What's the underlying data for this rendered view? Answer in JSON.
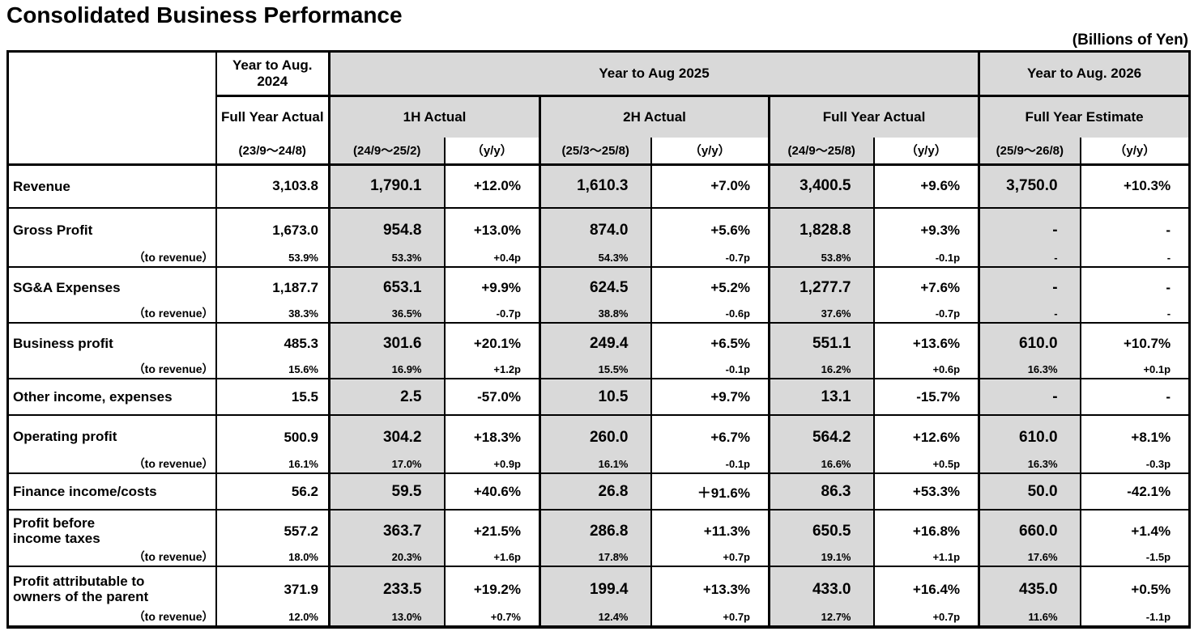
{
  "title": "Consolidated Business Performance",
  "unit_note": "(Billions of Yen)",
  "header": {
    "group_2024": "Year to Aug. 2024",
    "group_2025": "Year to Aug 2025",
    "group_2026": "Year to Aug. 2026",
    "sub_2024": "Full Year Actual",
    "sub_1h": "1H Actual",
    "sub_2h": "2H Actual",
    "sub_fy": "Full Year Actual",
    "sub_est": "Full Year Estimate",
    "periods": [
      "(23/9～24/8)",
      "(24/9～25/2)",
      "（y/y）",
      "(25/3～25/8)",
      "（y/y）",
      "(24/9～25/8)",
      "（y/y）",
      "(25/9～26/8)",
      "（y/y）"
    ]
  },
  "rows": [
    {
      "label": "Revenue",
      "values": [
        "3,103.8",
        "1,790.1",
        "+12.0%",
        "1,610.3",
        "+7.0%",
        "3,400.5",
        "+9.6%",
        "3,750.0",
        "+10.3%"
      ]
    },
    {
      "label": "Gross Profit",
      "sublabel": "（to revenue）",
      "values": [
        "1,673.0",
        "954.8",
        "+13.0%",
        "874.0",
        "+5.6%",
        "1,828.8",
        "+9.3%",
        "-",
        "-"
      ],
      "subvalues": [
        "53.9%",
        "53.3%",
        "+0.4p",
        "54.3%",
        "-0.7p",
        "53.8%",
        "-0.1p",
        "-",
        "-"
      ]
    },
    {
      "label": "SG&A Expenses",
      "sublabel": "（to revenue）",
      "values": [
        "1,187.7",
        "653.1",
        "+9.9%",
        "624.5",
        "+5.2%",
        "1,277.7",
        "+7.6%",
        "-",
        "-"
      ],
      "subvalues": [
        "38.3%",
        "36.5%",
        "-0.7p",
        "38.8%",
        "-0.6p",
        "37.6%",
        "-0.7p",
        "-",
        "-"
      ]
    },
    {
      "label": "Business profit",
      "sublabel": "（to revenue）",
      "values": [
        "485.3",
        "301.6",
        "+20.1%",
        "249.4",
        "+6.5%",
        "551.1",
        "+13.6%",
        "610.0",
        "+10.7%"
      ],
      "subvalues": [
        "15.6%",
        "16.9%",
        "+1.2p",
        "15.5%",
        "-0.1p",
        "16.2%",
        "+0.6p",
        "16.3%",
        "+0.1p"
      ]
    },
    {
      "label": "Other income, expenses",
      "values": [
        "15.5",
        "2.5",
        "-57.0%",
        "10.5",
        "+9.7%",
        "13.1",
        "-15.7%",
        "-",
        "-"
      ]
    },
    {
      "label": "Operating profit",
      "sublabel": "（to revenue）",
      "values": [
        "500.9",
        "304.2",
        "+18.3%",
        "260.0",
        "+6.7%",
        "564.2",
        "+12.6%",
        "610.0",
        "+8.1%"
      ],
      "subvalues": [
        "16.1%",
        "17.0%",
        "+0.9p",
        "16.1%",
        "-0.1p",
        "16.6%",
        "+0.5p",
        "16.3%",
        "-0.3p"
      ]
    },
    {
      "label": "Finance income/costs",
      "values": [
        "56.2",
        "59.5",
        "+40.6%",
        "26.8",
        "＋91.6%",
        "86.3",
        "+53.3%",
        "50.0",
        "-42.1%"
      ]
    },
    {
      "label": "Profit before\nincome taxes",
      "sublabel": "（to revenue）",
      "values": [
        "557.2",
        "363.7",
        "+21.5%",
        "286.8",
        "+11.3%",
        "650.5",
        "+16.8%",
        "660.0",
        "+1.4%"
      ],
      "subvalues": [
        "18.0%",
        "20.3%",
        "+1.6p",
        "17.8%",
        "+0.7p",
        "19.1%",
        "+1.1p",
        "17.6%",
        "-1.5p"
      ]
    },
    {
      "label": "Profit attributable to\nowners of the parent",
      "sublabel": "（to revenue）",
      "values": [
        "371.9",
        "233.5",
        "+19.2%",
        "199.4",
        "+13.3%",
        "433.0",
        "+16.4%",
        "435.0",
        "+0.5%"
      ],
      "subvalues": [
        "12.0%",
        "13.0%",
        "+0.7%",
        "12.4%",
        "+0.7p",
        "12.7%",
        "+0.7p",
        "11.6%",
        "-1.1p"
      ]
    }
  ]
}
